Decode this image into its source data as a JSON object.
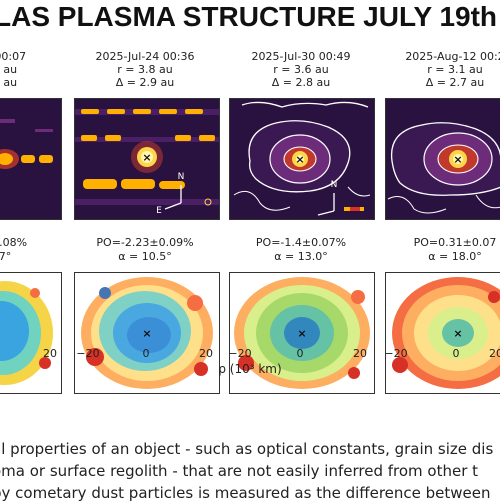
{
  "title": "LAS PLASMA STRUCTURE JULY 19th",
  "columns": [
    {
      "date": "2 00:07",
      "r": "3 au",
      "delta": "0 au",
      "po": "±0.08%",
      "alpha": "7°"
    },
    {
      "date": "2025-Jul-24 00:36",
      "r": "r = 3.8 au",
      "delta": "Δ = 2.9 au",
      "po": "PO=-2.23±0.09%",
      "alpha": "α = 10.5°"
    },
    {
      "date": "2025-Jul-30 00:49",
      "r": "r = 3.6 au",
      "delta": "Δ = 2.8 au",
      "po": "PO=-1.4±0.07%",
      "alpha": "α = 13.0°"
    },
    {
      "date": "2025-Aug-12 00:2",
      "r": "r = 3.1 au",
      "delta": "Δ = 2.7 au",
      "po": "PO=0.31±0.07",
      "alpha": "α = 18.0°"
    }
  ],
  "compass": {
    "north": "N",
    "east": "E"
  },
  "center_marker": "×",
  "xticks": [
    "20",
    "−20",
    "0",
    "20",
    "−20",
    "0",
    "20",
    "−20",
    "0",
    "20"
  ],
  "xlabel": "ρ (10³ km)",
  "body": [
    "al properties of an object - such as optical constants, grain size dis",
    "oma or surface regolith - that are not easily inferred from other t",
    "by cometary dust particles is measured as the difference between"
  ],
  "colors": {
    "bg_dark": "#2a1240",
    "core": "#fff7b0",
    "accent": "#ffb000"
  }
}
